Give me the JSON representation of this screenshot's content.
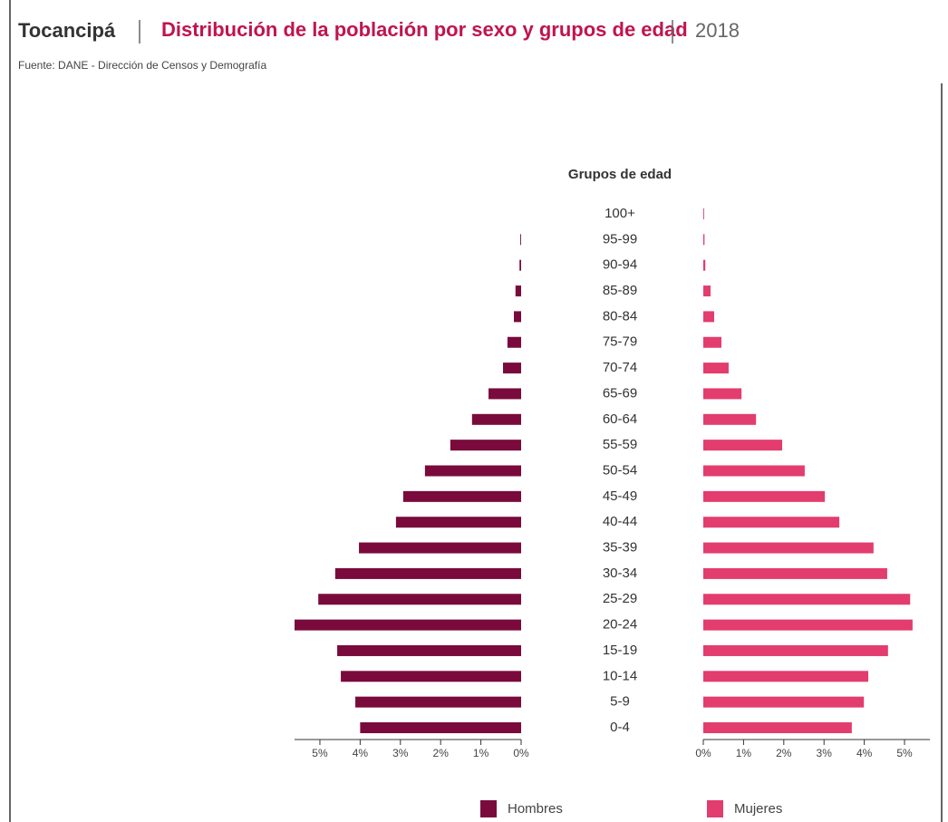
{
  "chart_data": {
    "type": "pyramid",
    "place": "Tocancipá",
    "title": "Distribución de la población por sexo y grupos de edad",
    "year": "2018",
    "source": "Fuente: DANE - Dirección de Censos y Demografía",
    "category_axis_label": "Grupos de edad",
    "categories": [
      "0-4",
      "5-9",
      "10-14",
      "15-19",
      "20-24",
      "25-29",
      "30-34",
      "35-39",
      "40-44",
      "45-49",
      "50-54",
      "55-59",
      "60-64",
      "65-69",
      "70-74",
      "75-79",
      "80-84",
      "85-89",
      "90-94",
      "95-99",
      "100+"
    ],
    "series": [
      {
        "name": "Hombres",
        "color": "#7a0a3c",
        "side": "left",
        "values": [
          4.0,
          4.12,
          4.48,
          4.57,
          5.63,
          5.04,
          4.62,
          4.03,
          3.11,
          2.93,
          2.39,
          1.76,
          1.22,
          0.81,
          0.45,
          0.34,
          0.18,
          0.14,
          0.04,
          0.02,
          0
        ]
      },
      {
        "name": "Mujeres",
        "color": "#e23d6e",
        "side": "right",
        "values": [
          3.69,
          3.99,
          4.1,
          4.59,
          5.2,
          5.14,
          4.57,
          4.23,
          3.38,
          3.02,
          2.52,
          1.96,
          1.31,
          0.95,
          0.63,
          0.45,
          0.27,
          0.18,
          0.05,
          0.03,
          0.02
        ]
      }
    ],
    "xlim": [
      0,
      5.63
    ],
    "xticks": [
      {
        "value": 0,
        "label": "0%"
      },
      {
        "value": 1,
        "label": "1%"
      },
      {
        "value": 2,
        "label": "2%"
      },
      {
        "value": 3,
        "label": "3%"
      },
      {
        "value": 4,
        "label": "4%"
      },
      {
        "value": 5,
        "label": "5%"
      }
    ]
  }
}
